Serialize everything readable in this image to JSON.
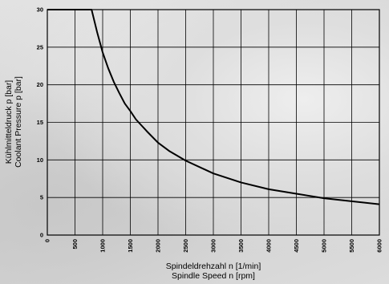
{
  "chart_data": {
    "type": "line",
    "xlabel_lines": [
      "Spindeldrehzahl n [1/min]",
      "Spindle Speed n [rpm]"
    ],
    "ylabel_lines": [
      "Kühlmitteldruck p [bar]",
      "Coolant Pressure p [bar]"
    ],
    "xlim": [
      0,
      6000
    ],
    "ylim": [
      0,
      30
    ],
    "grid": true,
    "x_ticks": [
      "0",
      "500",
      "1000",
      "1500",
      "2000",
      "2500",
      "3000",
      "3500",
      "4000",
      "4500",
      "5000",
      "5500",
      "6000"
    ],
    "y_ticks": [
      "0",
      "5",
      "10",
      "15",
      "20",
      "25",
      "30"
    ],
    "series": [
      {
        "x": [
          0,
          800,
          900,
          1000,
          1100,
          1200,
          1300,
          1400,
          1500,
          1600,
          1700,
          1800,
          2000,
          2200,
          2500,
          3000,
          3500,
          4000,
          4500,
          5000,
          5500,
          6000
        ],
        "y": [
          30,
          30,
          27.0,
          24.3,
          22.2,
          20.4,
          18.9,
          17.5,
          16.5,
          15.4,
          14.6,
          13.8,
          12.3,
          11.2,
          9.9,
          8.2,
          7.0,
          6.1,
          5.5,
          4.9,
          4.5,
          4.1
        ]
      }
    ]
  }
}
